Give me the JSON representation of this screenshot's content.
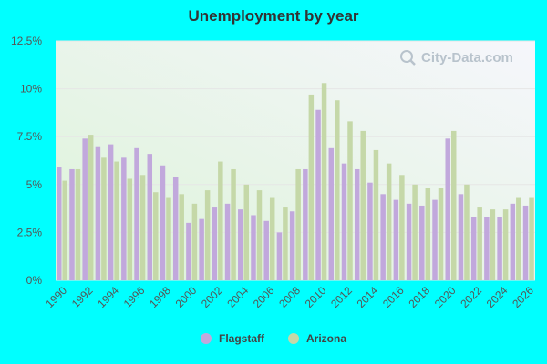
{
  "watermark": {
    "text": "City-Data.com",
    "icon": "magnifier-icon"
  },
  "colors": {
    "background": "#00ffff",
    "flagstaff": "#c1a8dc",
    "arizona": "#c5d8a8",
    "grid": "#e6e6e6"
  },
  "chart_data": {
    "type": "bar",
    "title": "Unemployment by year",
    "xlabel": "",
    "ylabel": "",
    "ylim": [
      0,
      12.5
    ],
    "yticks": [
      "0%",
      "2.5%",
      "5%",
      "7.5%",
      "10%",
      "12.5%"
    ],
    "ytick_values": [
      0,
      2.5,
      5,
      7.5,
      10,
      12.5
    ],
    "legend_position": "bottom",
    "grid": true,
    "categories": [
      "1990",
      "1991",
      "1992",
      "1993",
      "1994",
      "1995",
      "1996",
      "1997",
      "1998",
      "1999",
      "2000",
      "2001",
      "2002",
      "2003",
      "2004",
      "2005",
      "2006",
      "2007",
      "2008",
      "2009",
      "2010",
      "2011",
      "2012",
      "2013",
      "2014",
      "2015",
      "2016",
      "2017",
      "2018",
      "2019",
      "2020",
      "2021",
      "2022",
      "2023",
      "2024",
      "2025",
      "2026"
    ],
    "xtick_labels": [
      "1990",
      "1992",
      "1994",
      "1996",
      "1998",
      "2000",
      "2002",
      "2004",
      "2006",
      "2008",
      "2010",
      "2012",
      "2014",
      "2016",
      "2018",
      "2020",
      "2022",
      "2024",
      "2026"
    ],
    "series": [
      {
        "name": "Flagstaff",
        "values": [
          5.9,
          5.8,
          7.4,
          7.0,
          7.1,
          6.4,
          6.9,
          6.6,
          6.0,
          5.4,
          3.0,
          3.2,
          3.8,
          4.0,
          3.7,
          3.4,
          3.1,
          2.5,
          3.6,
          5.8,
          8.9,
          6.9,
          6.1,
          5.8,
          5.1,
          4.5,
          4.2,
          4.0,
          3.9,
          4.2,
          7.4,
          4.5,
          3.3,
          3.3,
          3.3,
          4.0,
          3.9
        ]
      },
      {
        "name": "Arizona",
        "values": [
          5.2,
          5.8,
          7.6,
          6.4,
          6.2,
          5.3,
          5.5,
          4.6,
          4.3,
          4.5,
          4.0,
          4.7,
          6.2,
          5.8,
          5.0,
          4.7,
          4.3,
          3.8,
          5.8,
          9.7,
          10.3,
          9.4,
          8.3,
          7.8,
          6.8,
          6.1,
          5.5,
          5.0,
          4.8,
          4.8,
          7.8,
          5.0,
          3.8,
          3.7,
          3.7,
          4.3,
          4.3
        ]
      }
    ]
  }
}
